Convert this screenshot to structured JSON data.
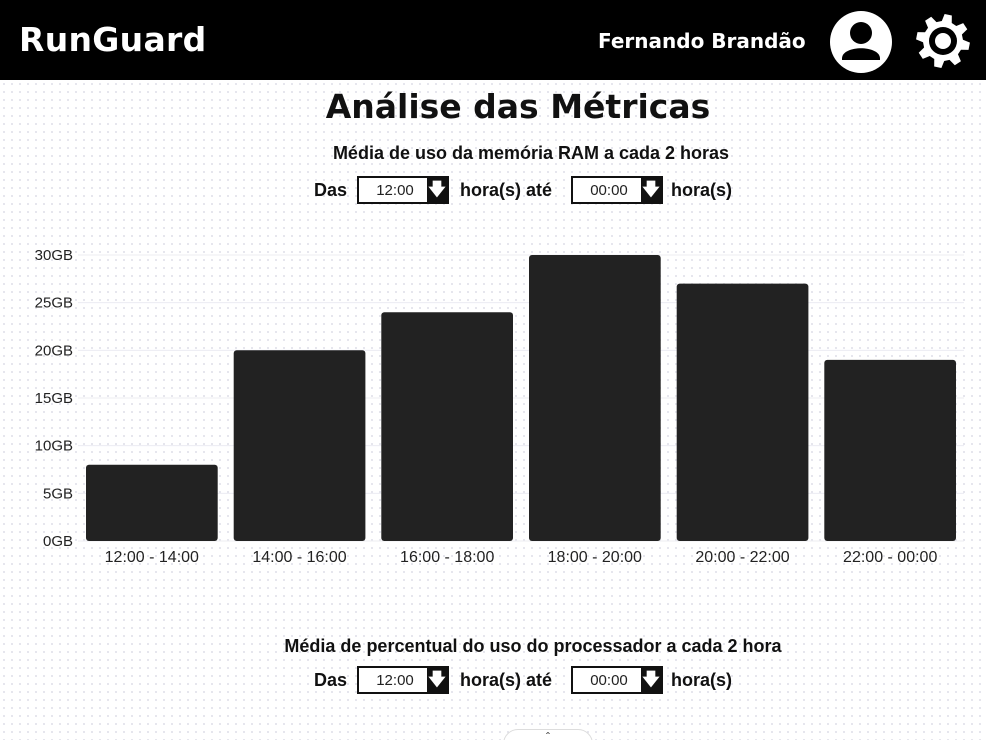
{
  "header": {
    "brand": "RunGuard",
    "user_name": "Fernando Brandão",
    "avatar_icon": "user-avatar-icon",
    "settings_icon": "gear-icon"
  },
  "page": {
    "title": "Análise das Métricas"
  },
  "ram_section": {
    "title": "Média de uso da memória RAM a  cada 2 horas",
    "from_label": "Das",
    "from_value": "12:00",
    "middle_label": "hora(s) até",
    "to_value": "00:00",
    "end_label": "hora(s)"
  },
  "cpu_section": {
    "title": "Média de percentual do uso do processador a  cada 2 hora",
    "from_label": "Das",
    "from_value": "12:00",
    "middle_label": "hora(s) até",
    "to_value": "00:00",
    "end_label": "hora(s)"
  },
  "chart_data": {
    "type": "bar",
    "categories": [
      "12:00 - 14:00",
      "14:00 - 16:00",
      "16:00 - 18:00",
      "18:00 - 20:00",
      "20:00 - 22:00",
      "22:00 - 00:00"
    ],
    "values": [
      8,
      20,
      24,
      30,
      27,
      19
    ],
    "y_ticks": [
      "0GB",
      "5GB",
      "10GB",
      "15GB",
      "20GB",
      "25GB",
      "30GB"
    ],
    "ylim": [
      0,
      30
    ],
    "unit": "GB",
    "bar_color": "#222222",
    "grid": true,
    "legend": "none"
  }
}
